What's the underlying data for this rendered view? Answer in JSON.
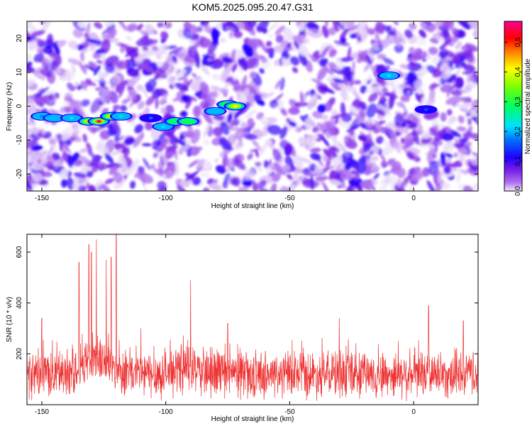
{
  "title": "KOM5.2025.095.20.47.G31",
  "chart_data": [
    {
      "type": "heatmap",
      "xlabel": "Height of straight line (km)",
      "ylabel": "Frequency (Hz)",
      "xlim": [
        -156,
        26
      ],
      "ylim": [
        -25,
        25
      ],
      "xticks": [
        -150,
        -100,
        -50,
        0
      ],
      "yticks": [
        -20,
        -10,
        0,
        10,
        20
      ],
      "colorbar": {
        "label": "Normalized spectral amplitude",
        "range": [
          0.0,
          0.57
        ],
        "ticks": [
          0.0,
          0.1,
          0.2,
          0.3,
          0.4,
          0.5
        ],
        "colors": [
          "#e8d8f8",
          "#8a2be2",
          "#4000ff",
          "#0060ff",
          "#00d8ff",
          "#00ff80",
          "#40ff00",
          "#ffff00",
          "#ff8000",
          "#ff0000",
          "#ff0080"
        ]
      },
      "features": [
        {
          "label": "band",
          "x": -150,
          "freq": -3,
          "amplitude": 0.18
        },
        {
          "label": "band",
          "x": -145,
          "freq": -3.5,
          "amplitude": 0.2
        },
        {
          "label": "band",
          "x": -138,
          "freq": -3.5,
          "amplitude": 0.22
        },
        {
          "label": "band",
          "x": -131,
          "freq": -4.5,
          "amplitude": 0.42
        },
        {
          "label": "band",
          "x": -127,
          "freq": -4.5,
          "amplitude": 0.55
        },
        {
          "label": "band",
          "x": -122,
          "freq": -3,
          "amplitude": 0.4
        },
        {
          "label": "band",
          "x": -118,
          "freq": -3,
          "amplitude": 0.25
        },
        {
          "label": "band",
          "x": -106,
          "freq": -3.5,
          "amplitude": 0.17
        },
        {
          "label": "band",
          "x": -101,
          "freq": -6,
          "amplitude": 0.22
        },
        {
          "label": "band",
          "x": -96,
          "freq": -4.5,
          "amplitude": 0.28
        },
        {
          "label": "band",
          "x": -91,
          "freq": -4.5,
          "amplitude": 0.3
        },
        {
          "label": "band",
          "x": -80,
          "freq": -1.5,
          "amplitude": 0.2
        },
        {
          "label": "band",
          "x": -75,
          "freq": 0.5,
          "amplitude": 0.3
        },
        {
          "label": "band",
          "x": -72,
          "freq": 0,
          "amplitude": 0.4
        },
        {
          "label": "blob",
          "x": -10,
          "freq": 9,
          "amplitude": 0.22
        },
        {
          "label": "blob",
          "x": 5,
          "freq": -1,
          "amplitude": 0.15
        }
      ]
    },
    {
      "type": "line",
      "xlabel": "Height of straight line (km)",
      "ylabel": "SNR (10 * v/v)",
      "xlim": [
        -156,
        26
      ],
      "ylim": [
        0,
        670
      ],
      "xticks": [
        -150,
        -100,
        -50,
        0
      ],
      "yticks": [
        200,
        400,
        600
      ],
      "color": "#ee3333",
      "peaks": [
        {
          "x": -150,
          "y": 340
        },
        {
          "x": -135,
          "y": 560
        },
        {
          "x": -131,
          "y": 630
        },
        {
          "x": -130,
          "y": 600
        },
        {
          "x": -128,
          "y": 650
        },
        {
          "x": -124,
          "y": 570
        },
        {
          "x": -122,
          "y": 580
        },
        {
          "x": -120,
          "y": 670
        },
        {
          "x": -110,
          "y": 300
        },
        {
          "x": -90,
          "y": 490
        },
        {
          "x": -75,
          "y": 320
        },
        {
          "x": -30,
          "y": 340
        },
        {
          "x": 6,
          "y": 390
        },
        {
          "x": 20,
          "y": 330
        }
      ]
    }
  ]
}
